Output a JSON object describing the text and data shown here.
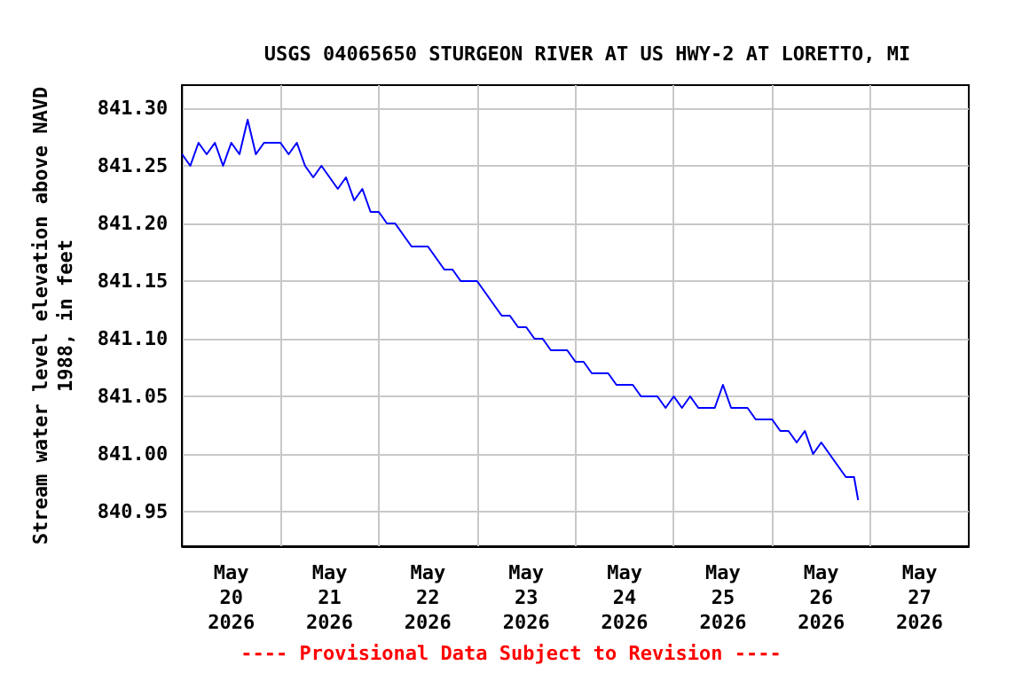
{
  "chart_data": {
    "type": "line",
    "title": "USGS 04065650 STURGEON RIVER AT US HWY-2 AT LORETTO, MI",
    "ylabel": "Stream water level elevation above NAVD\n1988, in feet",
    "annotations": [
      "---- Provisional Data Subject to Revision ----"
    ],
    "x": [
      "2026-05-20T00:00",
      "2026-05-20T02:00",
      "2026-05-20T04:00",
      "2026-05-20T06:00",
      "2026-05-20T08:00",
      "2026-05-20T10:00",
      "2026-05-20T12:00",
      "2026-05-20T14:00",
      "2026-05-20T16:00",
      "2026-05-20T18:00",
      "2026-05-20T20:00",
      "2026-05-20T22:00",
      "2026-05-21T00:00",
      "2026-05-21T02:00",
      "2026-05-21T04:00",
      "2026-05-21T06:00",
      "2026-05-21T08:00",
      "2026-05-21T10:00",
      "2026-05-21T12:00",
      "2026-05-21T14:00",
      "2026-05-21T16:00",
      "2026-05-21T18:00",
      "2026-05-21T20:00",
      "2026-05-21T22:00",
      "2026-05-22T00:00",
      "2026-05-22T02:00",
      "2026-05-22T04:00",
      "2026-05-22T06:00",
      "2026-05-22T08:00",
      "2026-05-22T10:00",
      "2026-05-22T12:00",
      "2026-05-22T14:00",
      "2026-05-22T16:00",
      "2026-05-22T18:00",
      "2026-05-22T20:00",
      "2026-05-22T22:00",
      "2026-05-23T00:00",
      "2026-05-23T02:00",
      "2026-05-23T04:00",
      "2026-05-23T06:00",
      "2026-05-23T08:00",
      "2026-05-23T10:00",
      "2026-05-23T12:00",
      "2026-05-23T14:00",
      "2026-05-23T16:00",
      "2026-05-23T18:00",
      "2026-05-23T20:00",
      "2026-05-23T22:00",
      "2026-05-24T00:00",
      "2026-05-24T02:00",
      "2026-05-24T04:00",
      "2026-05-24T06:00",
      "2026-05-24T08:00",
      "2026-05-24T10:00",
      "2026-05-24T12:00",
      "2026-05-24T14:00",
      "2026-05-24T16:00",
      "2026-05-24T18:00",
      "2026-05-24T20:00",
      "2026-05-24T22:00",
      "2026-05-25T00:00",
      "2026-05-25T02:00",
      "2026-05-25T04:00",
      "2026-05-25T06:00",
      "2026-05-25T08:00",
      "2026-05-25T10:00",
      "2026-05-25T12:00",
      "2026-05-25T14:00",
      "2026-05-25T16:00",
      "2026-05-25T18:00",
      "2026-05-25T20:00",
      "2026-05-25T22:00",
      "2026-05-26T00:00",
      "2026-05-26T02:00",
      "2026-05-26T04:00",
      "2026-05-26T06:00",
      "2026-05-26T08:00",
      "2026-05-26T10:00",
      "2026-05-26T12:00",
      "2026-05-26T14:00",
      "2026-05-26T16:00",
      "2026-05-26T18:00",
      "2026-05-26T20:00",
      "2026-05-26T21:00"
    ],
    "series": [
      {
        "color": "#0000ff",
        "values": [
          841.26,
          841.25,
          841.27,
          841.26,
          841.27,
          841.25,
          841.27,
          841.26,
          841.29,
          841.26,
          841.27,
          841.27,
          841.27,
          841.26,
          841.27,
          841.25,
          841.24,
          841.25,
          841.24,
          841.23,
          841.24,
          841.22,
          841.23,
          841.21,
          841.21,
          841.2,
          841.2,
          841.19,
          841.18,
          841.18,
          841.18,
          841.17,
          841.16,
          841.16,
          841.15,
          841.15,
          841.15,
          841.14,
          841.13,
          841.12,
          841.12,
          841.11,
          841.11,
          841.1,
          841.1,
          841.09,
          841.09,
          841.09,
          841.08,
          841.08,
          841.07,
          841.07,
          841.07,
          841.06,
          841.06,
          841.06,
          841.05,
          841.05,
          841.05,
          841.04,
          841.05,
          841.04,
          841.05,
          841.04,
          841.04,
          841.04,
          841.06,
          841.04,
          841.04,
          841.04,
          841.03,
          841.03,
          841.03,
          841.02,
          841.02,
          841.01,
          841.02,
          841.0,
          841.01,
          841.0,
          840.99,
          840.98,
          840.98,
          840.96
        ]
      }
    ],
    "xlim": [
      "2026-05-20",
      "2026-05-28"
    ],
    "xticks": [
      {
        "value": "2026-05-20T12:00",
        "label": "May\n20\n2026"
      },
      {
        "value": "2026-05-21T12:00",
        "label": "May\n21\n2026"
      },
      {
        "value": "2026-05-22T12:00",
        "label": "May\n22\n2026"
      },
      {
        "value": "2026-05-23T12:00",
        "label": "May\n23\n2026"
      },
      {
        "value": "2026-05-24T12:00",
        "label": "May\n24\n2026"
      },
      {
        "value": "2026-05-25T12:00",
        "label": "May\n25\n2026"
      },
      {
        "value": "2026-05-26T12:00",
        "label": "May\n26\n2026"
      },
      {
        "value": "2026-05-27T12:00",
        "label": "May\n27\n2026"
      },
      {
        "value": "2026-05-21T00:00",
        "label": null
      },
      {
        "value": "2026-05-22T00:00",
        "label": null
      },
      {
        "value": "2026-05-23T00:00",
        "label": null
      },
      {
        "value": "2026-05-24T00:00",
        "label": null
      },
      {
        "value": "2026-05-25T00:00",
        "label": null
      },
      {
        "value": "2026-05-26T00:00",
        "label": null
      },
      {
        "value": "2026-05-27T00:00",
        "label": null
      }
    ],
    "ylim": [
      840.92,
      841.32
    ],
    "yticks": [
      {
        "value": 840.95,
        "label": "840.95"
      },
      {
        "value": 841.0,
        "label": "841.00"
      },
      {
        "value": 841.05,
        "label": "841.05"
      },
      {
        "value": 841.1,
        "label": "841.10"
      },
      {
        "value": 841.15,
        "label": "841.15"
      },
      {
        "value": 841.2,
        "label": "841.20"
      },
      {
        "value": 841.25,
        "label": "841.25"
      },
      {
        "value": 841.3,
        "label": "841.30"
      }
    ],
    "grid": true,
    "marker": "none",
    "line_style": "solid"
  }
}
